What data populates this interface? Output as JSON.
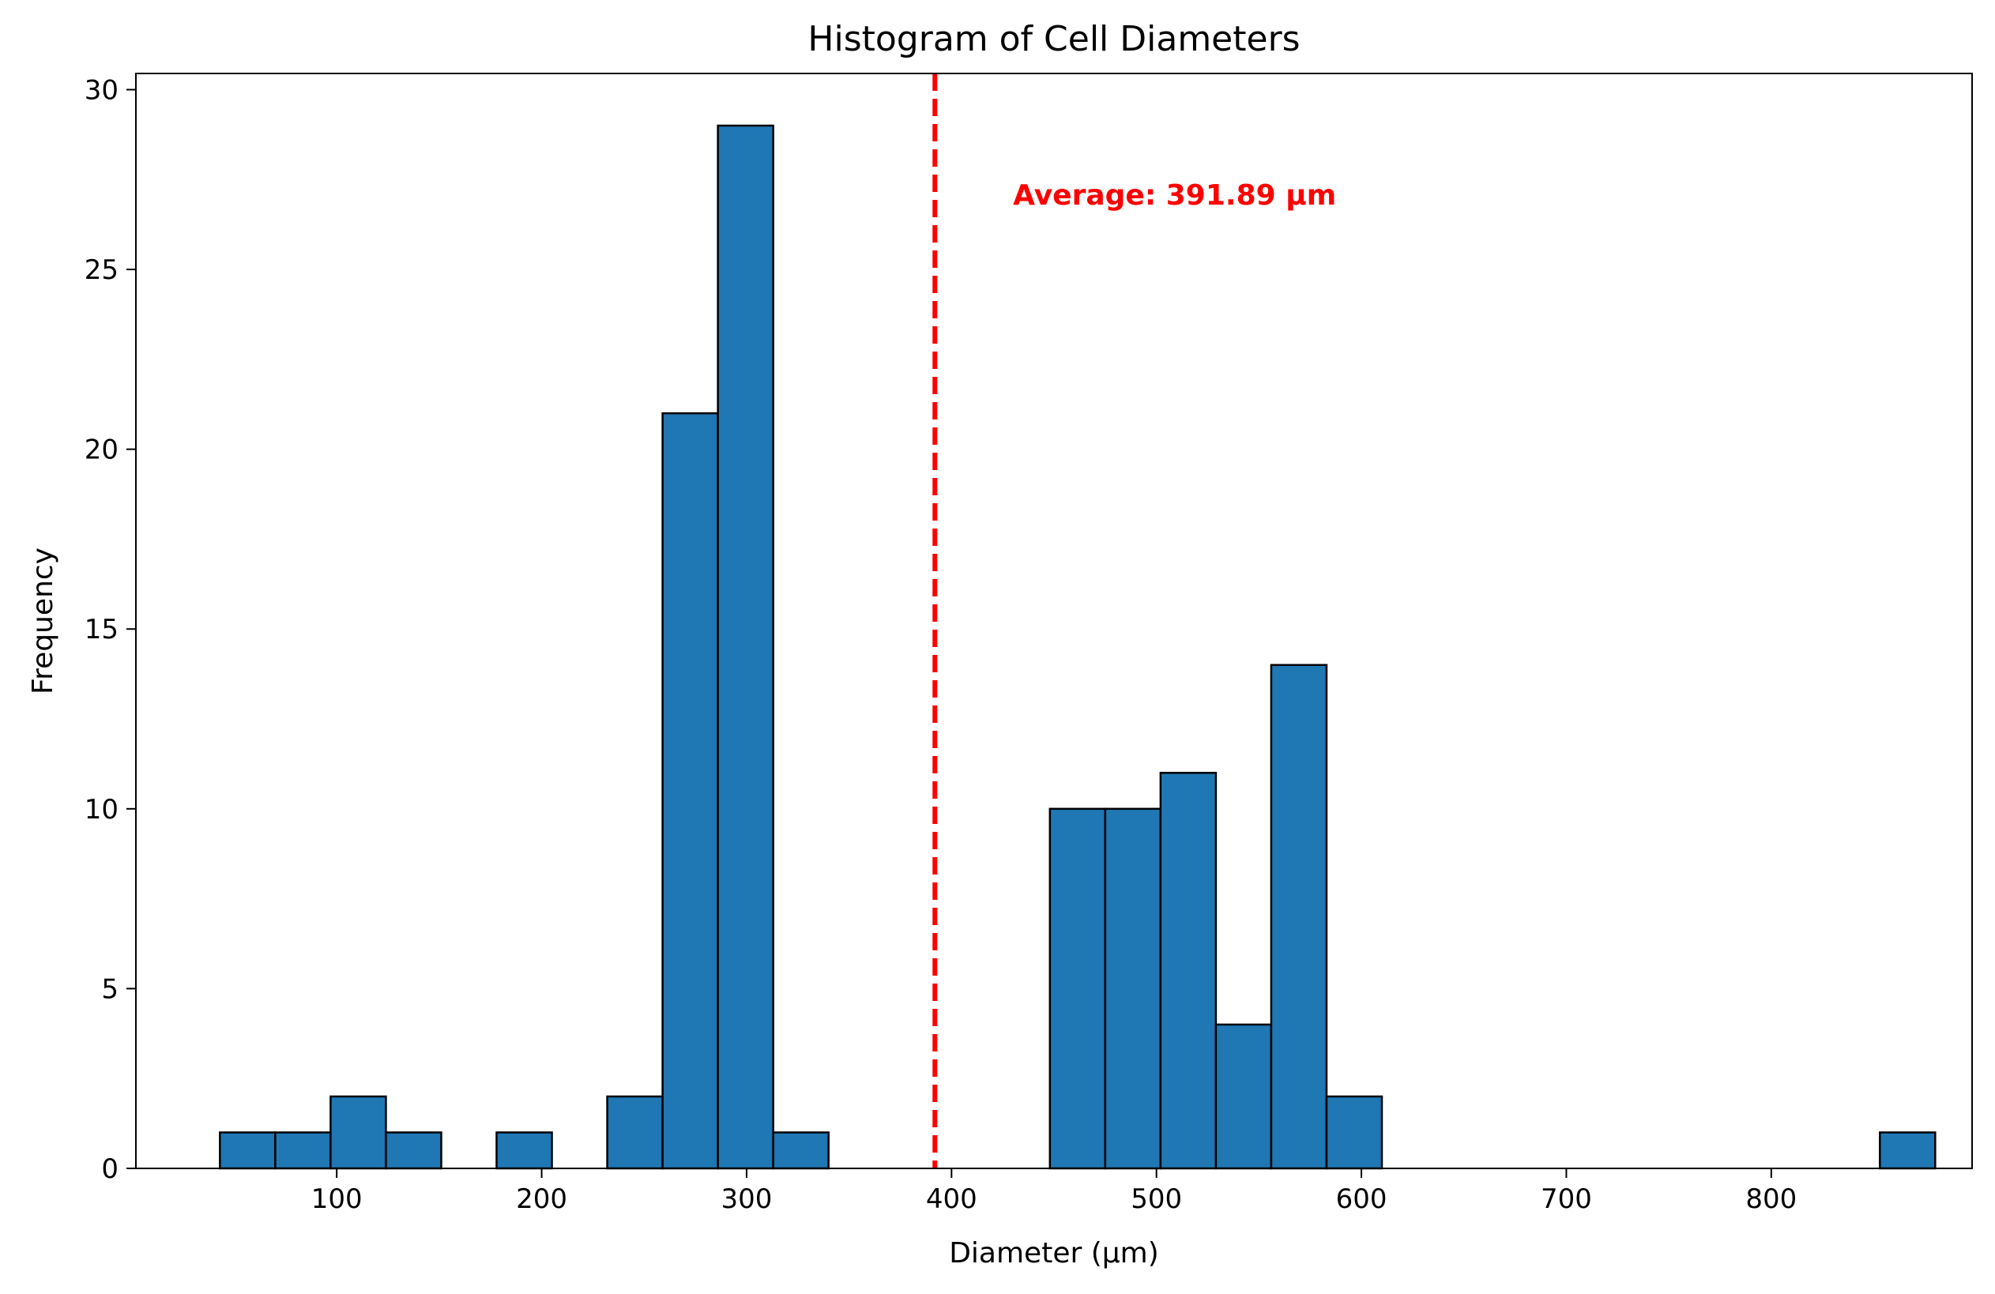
{
  "chart_data": {
    "type": "bar",
    "title": "Histogram of Cell Diameters",
    "xlabel": "Diameter (µm)",
    "ylabel": "Frequency",
    "xlim": [
      2,
      898
    ],
    "ylim": [
      0,
      30.45
    ],
    "x_ticks": [
      100,
      200,
      300,
      400,
      500,
      600,
      700,
      800
    ],
    "y_ticks": [
      0,
      5,
      10,
      15,
      20,
      25,
      30
    ],
    "bin_edges": [
      43,
      70,
      97,
      124,
      151,
      178,
      205,
      232,
      259,
      286,
      313,
      340,
      367,
      394,
      421,
      448,
      475,
      502,
      529,
      556,
      583,
      610,
      637,
      664,
      691,
      718,
      745,
      772,
      799,
      826,
      853,
      880
    ],
    "values": [
      1,
      1,
      2,
      1,
      0,
      1,
      0,
      2,
      21,
      29,
      1,
      0,
      0,
      0,
      0,
      10,
      10,
      11,
      4,
      14,
      2,
      0,
      0,
      0,
      0,
      0,
      0,
      0,
      0,
      0,
      1
    ],
    "bar_color": "#1f77b4",
    "edge_color": "#000000",
    "grid": false,
    "average_line": {
      "x": 391.89,
      "color": "#ff0000",
      "label": "Average: 391.89 µm",
      "label_position": [
        430,
        26.8
      ]
    }
  }
}
